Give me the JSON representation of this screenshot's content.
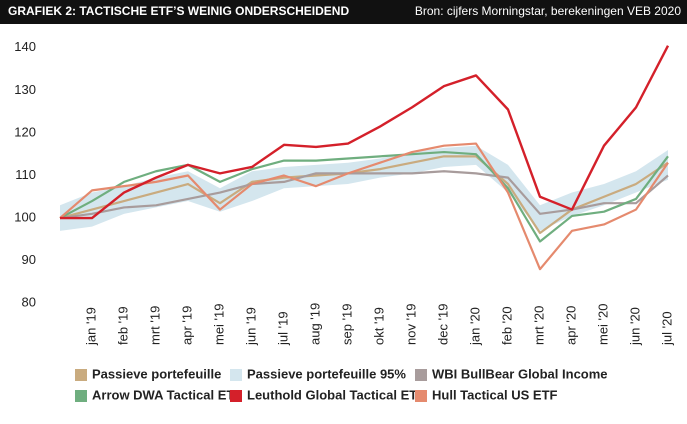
{
  "header": {
    "title": "GRAFIEK 2: TACTISCHE ETF’S WEINIG ONDERSCHEIDEND",
    "source": "Bron: cijfers Morningstar, berekeningen VEB 2020"
  },
  "chart_data": {
    "type": "line",
    "categories": [
      null,
      "jan '19",
      "feb '19",
      "mrt '19",
      "apr '19",
      "mei '19",
      "jun '19",
      "jul '19",
      "aug '19",
      "sep '19",
      "okt '19",
      "nov '19",
      "dec '19",
      "jan '20",
      "feb '20",
      "mrt '20",
      "apr '20",
      "mei '20",
      "jun '20",
      "jul '20"
    ],
    "ylim": [
      77,
      143
    ],
    "yticks": [
      80,
      90,
      100,
      110,
      120,
      130,
      140
    ],
    "grid": false,
    "band": {
      "name": "Passieve portefeuille 95%",
      "color": "#d4e6ee",
      "lower": [
        97,
        98,
        101,
        102.5,
        104,
        101.5,
        104,
        107,
        107.5,
        108,
        109.5,
        110.5,
        112,
        112.5,
        106,
        97,
        100.5,
        103,
        106,
        109
      ],
      "upper": [
        103,
        106,
        107.5,
        109.5,
        111,
        107,
        111,
        112,
        112.5,
        113,
        114,
        115.5,
        116.5,
        117,
        112.5,
        103,
        106,
        108,
        111,
        116
      ]
    },
    "series": [
      {
        "name": "Passieve portefeuille",
        "color": "#c9ab7f",
        "values": [
          100,
          102,
          104,
          106,
          108,
          103.5,
          108.5,
          109.5,
          110,
          110.5,
          111.5,
          113,
          114.5,
          114.5,
          108,
          96.5,
          102,
          105,
          108,
          113
        ]
      },
      {
        "name": "WBI BullBear Global Income",
        "color": "#a89c9c",
        "values": [
          100,
          101,
          102.5,
          103,
          104.5,
          106,
          108,
          108.5,
          110.5,
          110.5,
          110.5,
          110.5,
          111,
          110.5,
          109.5,
          101,
          102,
          103.5,
          103.5,
          110
        ]
      },
      {
        "name": "Arrow DWA Tactical ETF",
        "color": "#6fae7f",
        "values": [
          100,
          104,
          108.5,
          111,
          112.5,
          108.5,
          111.5,
          113.5,
          113.5,
          114,
          114.5,
          115,
          115.5,
          115,
          107,
          94.5,
          100.5,
          101.5,
          104.5,
          114.5
        ]
      },
      {
        "name": "Hull Tactical US ETF",
        "color": "#e58a6e",
        "values": [
          100,
          106.5,
          107.5,
          108.5,
          110,
          102,
          108,
          110,
          107.5,
          110.5,
          113,
          115.5,
          117,
          117.5,
          106,
          88,
          97,
          98.5,
          102,
          113
        ]
      },
      {
        "name": "Leuthold Global Tactical ETF",
        "color": "#d4202a",
        "values": [
          100,
          100,
          106,
          109.5,
          112.5,
          110.5,
          112,
          117.2,
          116.7,
          117.5,
          121.5,
          126,
          131,
          133.5,
          125.5,
          105,
          102,
          117,
          126,
          140.5
        ]
      }
    ]
  }
}
